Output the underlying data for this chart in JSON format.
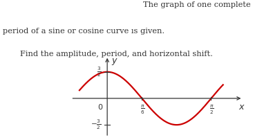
{
  "title_line1": "The graph of one complete",
  "title_line2": "period of a sine or cosine curve ıs given.",
  "title_line3": "Find the amplitude, period, and horizontal shift.",
  "amplitude": 1.5,
  "x_tick1_val": 0.5235987755982988,
  "x_tick2_val": 1.5707963267948966,
  "y_tick_pos": 1.5,
  "y_tick_neg": -1.5,
  "curve_color": "#cc0000",
  "curve_linewidth": 1.6,
  "axis_color": "#333333",
  "text_color": "#333333",
  "xlim": [
    -0.55,
    2.05
  ],
  "ylim": [
    -2.2,
    2.4
  ],
  "x_start": -0.42,
  "x_end": 1.75,
  "background_color": "#ffffff"
}
